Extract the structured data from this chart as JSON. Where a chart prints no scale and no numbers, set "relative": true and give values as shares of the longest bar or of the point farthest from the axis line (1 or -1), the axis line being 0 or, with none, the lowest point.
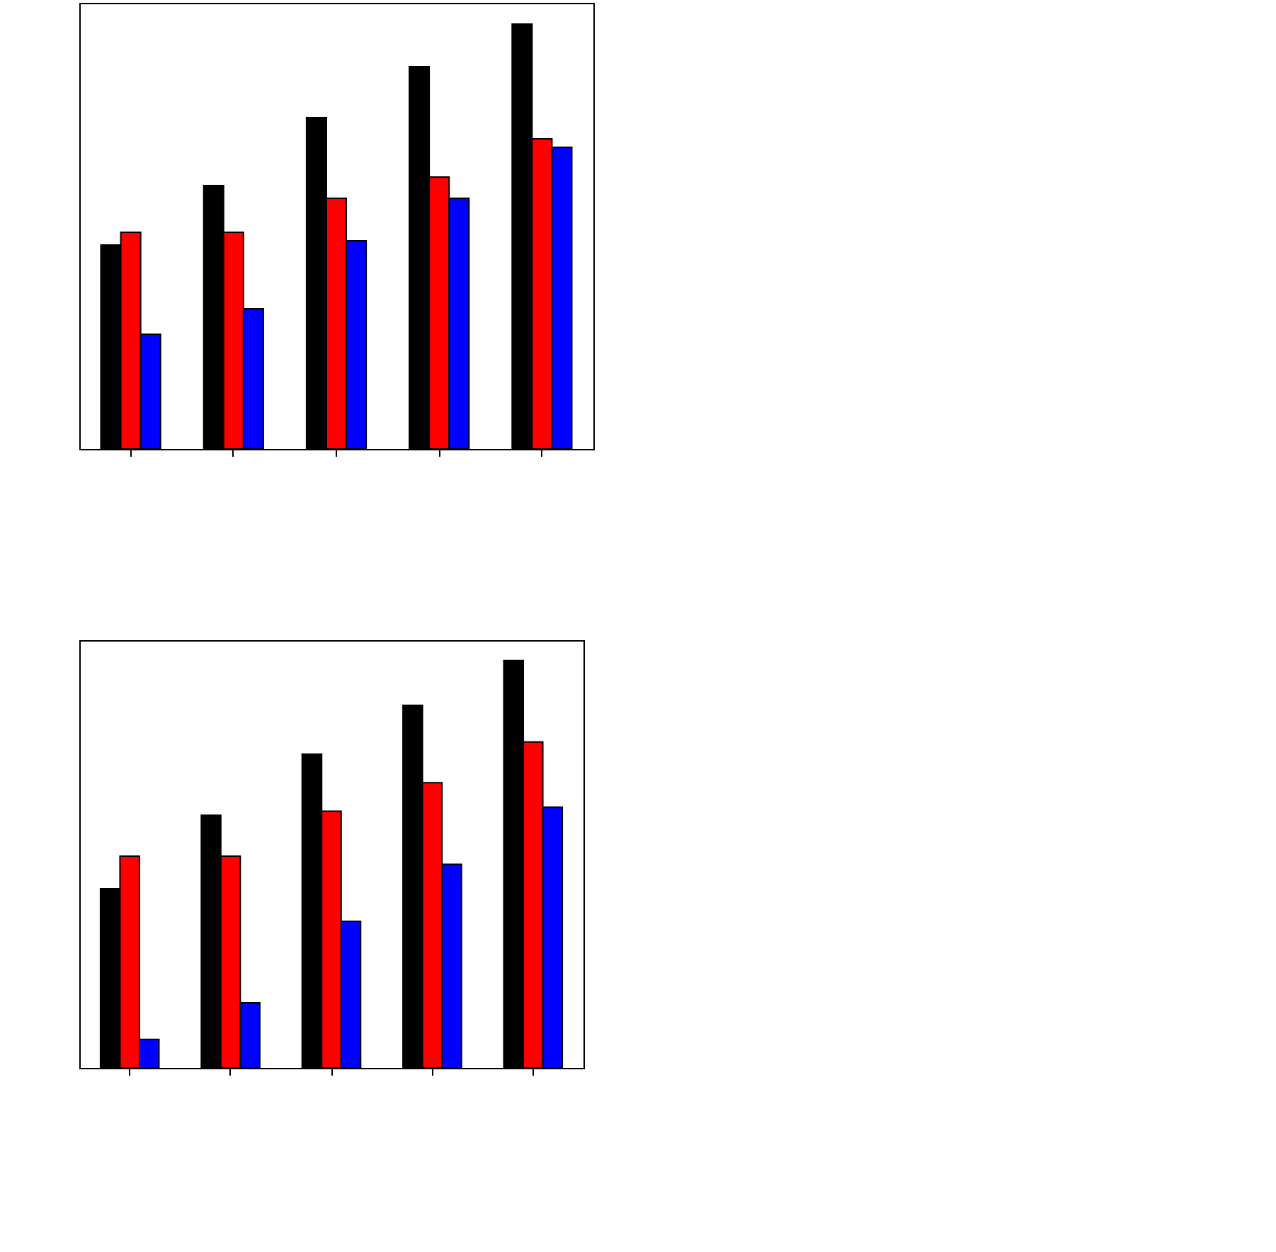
{
  "chart_data": [
    {
      "type": "bar",
      "categories": [
        null,
        null,
        null,
        null,
        null
      ],
      "relative": true,
      "series": [
        {
          "color": "#000000",
          "values": [
            0.48,
            0.62,
            0.78,
            0.9,
            1
          ]
        },
        {
          "color": "#ff0000",
          "values": [
            0.51,
            0.51,
            0.59,
            0.64,
            0.73
          ]
        },
        {
          "color": "#0000ff",
          "values": [
            0.27,
            0.33,
            0.49,
            0.59,
            0.71
          ]
        }
      ]
    },
    {
      "type": "bar",
      "categories": [
        null,
        null,
        null,
        null,
        null
      ],
      "relative": true,
      "series": [
        {
          "color": "#000000",
          "values": [
            0.44,
            0.62,
            0.77,
            0.89,
            1
          ]
        },
        {
          "color": "#ff0000",
          "values": [
            0.52,
            0.52,
            0.63,
            0.7,
            0.8
          ]
        },
        {
          "color": "#0000ff",
          "values": [
            0.07,
            0.16,
            0.36,
            0.5,
            0.64
          ]
        }
      ]
    }
  ]
}
